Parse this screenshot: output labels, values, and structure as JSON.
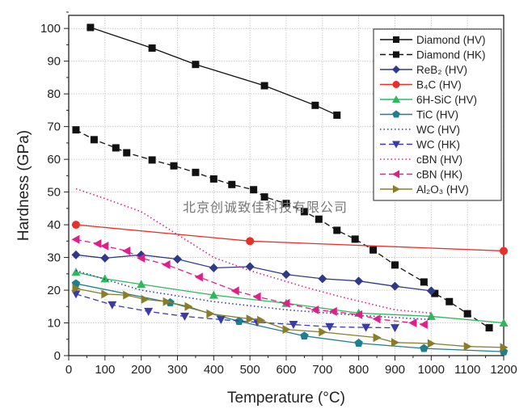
{
  "chart_data": {
    "type": "line",
    "xlabel": "Temperature (°C)",
    "ylabel": "Hardness (GPa)",
    "xlim": [
      0,
      1200
    ],
    "ylim": [
      0,
      104
    ],
    "xticks": [
      0,
      100,
      200,
      300,
      400,
      500,
      600,
      700,
      800,
      900,
      1000,
      1100,
      1200
    ],
    "yticks": [
      0,
      10,
      20,
      30,
      40,
      50,
      60,
      70,
      80,
      90,
      100
    ],
    "grid": true,
    "legend_position": "top-right",
    "series": [
      {
        "name": "Diamond (HV)",
        "color": "#111111",
        "dash": "solid",
        "marker": "square",
        "x": [
          60,
          230,
          350,
          540,
          680,
          740
        ],
        "y": [
          100.3,
          94,
          89,
          82.5,
          76.5,
          73.5
        ]
      },
      {
        "name": "Diamond (HK)",
        "color": "#111111",
        "dash": "dash",
        "marker": "square",
        "x": [
          20,
          70,
          130,
          160,
          230,
          290,
          350,
          400,
          450,
          510,
          540,
          600,
          650,
          690,
          740,
          790,
          840,
          900,
          980,
          1010,
          1050,
          1100,
          1160
        ],
        "y": [
          69,
          66,
          63.5,
          62,
          59.8,
          58,
          56,
          54,
          52.3,
          50.7,
          48.5,
          46.5,
          44,
          41.7,
          38.3,
          35.6,
          32.3,
          27.7,
          22.5,
          19,
          16.5,
          12.8,
          8.5
        ]
      },
      {
        "name": "ReB₂ (HV)",
        "color": "#2e3a87",
        "dash": "solid",
        "marker": "diamond",
        "x": [
          20,
          100,
          200,
          300,
          400,
          500,
          600,
          700,
          800,
          900,
          1000
        ],
        "y": [
          30.8,
          29.8,
          30.8,
          29.5,
          26.8,
          27.2,
          24.8,
          23.5,
          22.8,
          21.2,
          19.8
        ]
      },
      {
        "name": "B₄C (HV)",
        "color": "#e8302a",
        "dash": "solid",
        "marker": "circle",
        "x": [
          20,
          500,
          1200
        ],
        "y": [
          40,
          35,
          32
        ]
      },
      {
        "name": "6H-SiC (HV)",
        "color": "#2db85a",
        "dash": "solid",
        "marker": "triangle-up",
        "x": [
          20,
          100,
          200,
          400,
          600,
          800,
          1000,
          1200
        ],
        "y": [
          25.5,
          23.5,
          21.8,
          18.5,
          16,
          13,
          12,
          10
        ]
      },
      {
        "name": "TiC (HV)",
        "color": "#1f7f8c",
        "dash": "solid",
        "marker": "pentagon",
        "x": [
          20,
          280,
          470,
          650,
          800,
          980,
          1200
        ],
        "y": [
          22,
          16.2,
          10.5,
          6,
          3.8,
          2.2,
          1.2
        ]
      },
      {
        "name": "WC (HV)",
        "color": "#3a3aa8",
        "dash": "dot",
        "marker": "none",
        "x": [
          20,
          200,
          400,
          600,
          800,
          1000
        ],
        "y": [
          26,
          20,
          16.5,
          14,
          12.3,
          11
        ]
      },
      {
        "name": "WC (HK)",
        "color": "#3a3aa8",
        "dash": "dash",
        "marker": "triangle-down",
        "x": [
          20,
          120,
          220,
          320,
          420,
          520,
          620,
          720,
          820,
          900
        ],
        "y": [
          18.8,
          15.5,
          13.5,
          12,
          11,
          10.2,
          9.5,
          8.8,
          8.6,
          8.5
        ]
      },
      {
        "name": "cBN (HV)",
        "color": "#e0208a",
        "dash": "dot",
        "marker": "none",
        "x": [
          20,
          100,
          200,
          300,
          400,
          500,
          650,
          750,
          900,
          1000
        ],
        "y": [
          51,
          48,
          44,
          37,
          30,
          26,
          21,
          18,
          14,
          13
        ]
      },
      {
        "name": "cBN (HK)",
        "color": "#e0208a",
        "dash": "dash",
        "marker": "triangle-left",
        "x": [
          20,
          80,
          100,
          160,
          200,
          270,
          360,
          460,
          520,
          600,
          680,
          730,
          800,
          850,
          950,
          980
        ],
        "y": [
          35.5,
          34.2,
          33.5,
          32,
          29.8,
          27.8,
          24,
          19.8,
          18,
          16,
          14,
          13.5,
          12.5,
          11.2,
          10,
          9.5
        ]
      },
      {
        "name": "Al₂O₃ (HV)",
        "color": "#8a7d2a",
        "dash": "solid",
        "marker": "triangle-right",
        "x": [
          20,
          100,
          160,
          210,
          270,
          330,
          390,
          500,
          530,
          600,
          700,
          850,
          900,
          1000,
          1100,
          1200
        ],
        "y": [
          20.5,
          18.8,
          18.5,
          17.2,
          16.5,
          15,
          12.8,
          11.2,
          10.8,
          8,
          7.2,
          5.5,
          4,
          3.7,
          2.8,
          2.5
        ]
      }
    ]
  },
  "watermark": "北京创诚致佳科技有限公司"
}
